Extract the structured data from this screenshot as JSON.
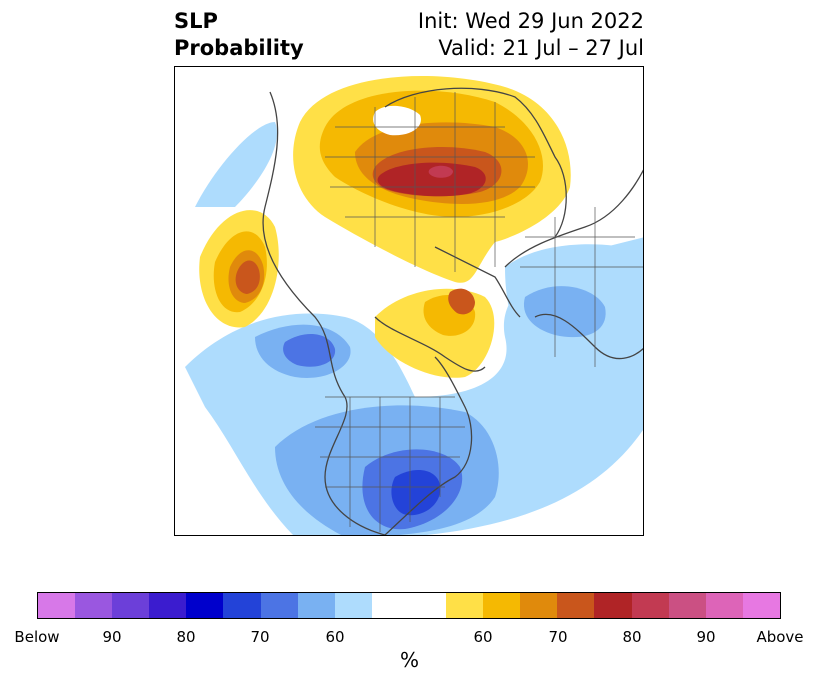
{
  "title": {
    "left_line1": "SLP",
    "left_line2": "Probability",
    "right_line1": "Init: Wed 29 Jun 2022",
    "right_line2": "Valid: 21 Jul – 27 Jul"
  },
  "colors": {
    "below": [
      "#d778e8",
      "#9a57e0",
      "#6c3fd9",
      "#3b1ccf",
      "#0000cc",
      "#2343d8",
      "#4c74e4",
      "#79b1f2",
      "#aedcfd"
    ],
    "neutral": "#ffffff",
    "above": [
      "#ffe047",
      "#f5b902",
      "#e08a0c",
      "#c9561c",
      "#b02426",
      "#c23a52",
      "#cb5083",
      "#dd64b8",
      "#e778e2"
    ]
  },
  "colorbar": {
    "tick_labels": [
      "Below",
      "90",
      "80",
      "70",
      "60",
      "60",
      "70",
      "80",
      "90",
      "Above"
    ],
    "unit": "%"
  }
}
